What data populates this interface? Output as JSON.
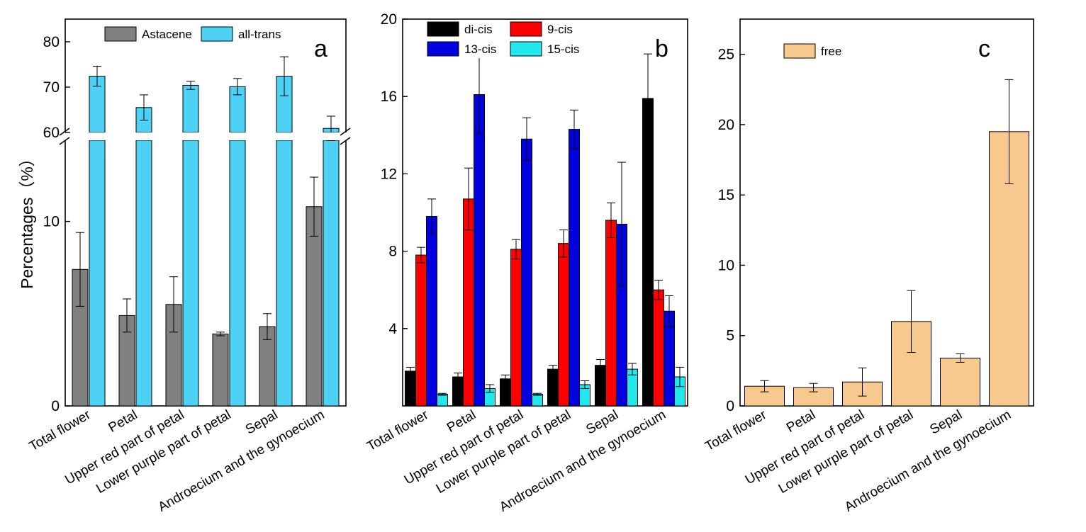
{
  "figure": {
    "y_axis_label": "Percentages（%）"
  },
  "chart_data": [
    {
      "type": "bar",
      "panel_label": "a",
      "title": "",
      "xlabel": "",
      "ylabel": "Percentages（%）",
      "categories": [
        "Total flower",
        "Petal",
        "Upper red part of petal",
        "Lower purple part of petal",
        "Sepal",
        "Androecium and the gynoecium"
      ],
      "series": [
        {
          "name": "Astacene",
          "color": "#808080",
          "values": [
            7.4,
            4.9,
            5.5,
            3.9,
            4.3,
            10.8
          ],
          "errors": [
            2.0,
            0.9,
            1.5,
            0.1,
            0.7,
            1.6
          ]
        },
        {
          "name": "all-trans",
          "color": "#4dd2f5",
          "values": [
            72.4,
            65.5,
            70.4,
            70.1,
            72.4,
            60.9
          ],
          "errors": [
            2.2,
            2.8,
            0.9,
            1.8,
            4.3,
            2.7
          ]
        }
      ],
      "y_axis": {
        "broken": true,
        "lower_range": [
          0,
          10
        ],
        "lower_display_max": 14.4,
        "upper_range": [
          60,
          80
        ],
        "upper_display_max": 85,
        "lower_ticks": [
          0,
          10
        ],
        "upper_ticks": [
          60,
          70,
          80
        ]
      },
      "legend": {
        "position": "top",
        "columns": 2
      }
    },
    {
      "type": "bar",
      "panel_label": "b",
      "title": "",
      "xlabel": "",
      "ylabel": "",
      "categories": [
        "Total flower",
        "Petal",
        "Upper red part of petal",
        "Lower purple part of petal",
        "Sepal",
        "Androecium and the gynoecium"
      ],
      "series": [
        {
          "name": "di-cis",
          "color": "#000000",
          "values": [
            1.8,
            1.5,
            1.4,
            1.9,
            2.1,
            15.9
          ],
          "errors": [
            0.2,
            0.2,
            0.2,
            0.2,
            0.3,
            2.3
          ]
        },
        {
          "name": "9-cis",
          "color": "#ff0000",
          "values": [
            7.8,
            10.7,
            8.1,
            8.4,
            9.6,
            6.0
          ],
          "errors": [
            0.4,
            1.6,
            0.5,
            0.7,
            0.9,
            0.5
          ]
        },
        {
          "name": "13-cis",
          "color": "#0000e0",
          "values": [
            9.8,
            16.1,
            13.8,
            14.3,
            9.4,
            4.9
          ],
          "errors": [
            0.9,
            2.0,
            1.1,
            1.0,
            3.2,
            0.8
          ]
        },
        {
          "name": "15-cis",
          "color": "#22e8ee",
          "values": [
            0.6,
            0.9,
            0.6,
            1.1,
            1.9,
            1.5
          ],
          "errors": [
            0.05,
            0.2,
            0.05,
            0.2,
            0.3,
            0.5
          ]
        }
      ],
      "ylim": [
        0,
        20
      ],
      "yticks": [
        4,
        8,
        12,
        16,
        20
      ],
      "legend": {
        "position": "top-left",
        "columns": 2
      }
    },
    {
      "type": "bar",
      "panel_label": "c",
      "title": "",
      "xlabel": "",
      "ylabel": "",
      "categories": [
        "Total flower",
        "Petal",
        "Upper red part of petal",
        "Lower purple part of petal",
        "Sepal",
        "Androecium and the gynoecium"
      ],
      "series": [
        {
          "name": "free",
          "color": "#f8c98e",
          "values": [
            1.4,
            1.3,
            1.7,
            6.0,
            3.4,
            19.5
          ],
          "errors": [
            0.4,
            0.3,
            1.0,
            2.2,
            0.3,
            3.7
          ]
        }
      ],
      "ylim": [
        0,
        27.5
      ],
      "yticks": [
        0,
        5,
        10,
        15,
        20,
        25
      ],
      "legend": {
        "position": "top-left",
        "columns": 1
      }
    }
  ]
}
